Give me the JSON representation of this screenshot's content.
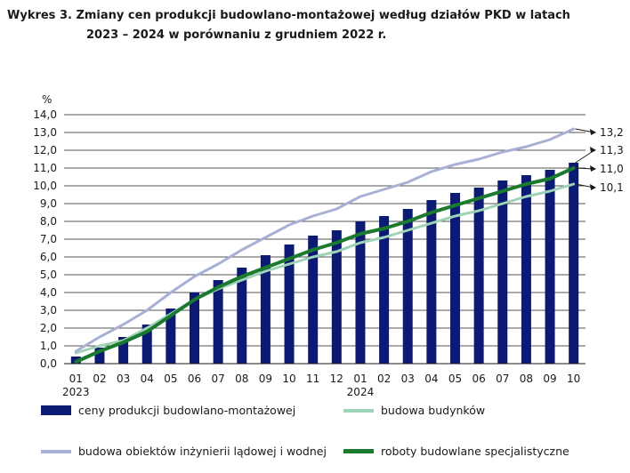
{
  "title_line1": "Wykres 3. Zmiany cen produkcji budowlano-montażowej według działów PKD w latach",
  "title_line2": "2023 – 2024 w porównaniu z grudniem 2022 r.",
  "colors": {
    "bars": "#0d1a73",
    "budowa_budynkow": "#9fd3b6",
    "inzynieria": "#a8b0d6",
    "roboty_specjalistyczne": "#1a7a2e",
    "grid": "#1a1a1a"
  },
  "chart_data": {
    "type": "bar",
    "ylabel": "%",
    "ylim": [
      0,
      14
    ],
    "yticks": [
      "0,0",
      "1,0",
      "2,0",
      "3,0",
      "4,0",
      "5,0",
      "6,0",
      "7,0",
      "8,0",
      "9,0",
      "10,0",
      "11,0",
      "12,0",
      "13,0",
      "14,0"
    ],
    "categories": [
      "01",
      "02",
      "03",
      "04",
      "05",
      "06",
      "07",
      "08",
      "09",
      "10",
      "11",
      "12",
      "01",
      "02",
      "03",
      "04",
      "05",
      "06",
      "07",
      "08",
      "09",
      "10"
    ],
    "year_labels": [
      {
        "index": 0,
        "text": "2023"
      },
      {
        "index": 12,
        "text": "2024"
      }
    ],
    "grid": "horizontal",
    "legend_position": "bottom",
    "series": [
      {
        "name": "ceny produkcji budowlano-montażowej",
        "kind": "bar",
        "values": [
          0.4,
          0.9,
          1.5,
          2.2,
          3.1,
          4.0,
          4.7,
          5.4,
          6.1,
          6.7,
          7.2,
          7.5,
          8.0,
          8.3,
          8.7,
          9.2,
          9.6,
          9.9,
          10.3,
          10.6,
          10.9,
          11.3
        ]
      },
      {
        "name": "budowa budynków",
        "kind": "line",
        "values": [
          0.6,
          1.0,
          1.3,
          2.0,
          2.8,
          3.6,
          4.2,
          4.7,
          5.2,
          5.6,
          6.0,
          6.3,
          6.8,
          7.1,
          7.5,
          7.9,
          8.3,
          8.6,
          9.0,
          9.4,
          9.7,
          10.1
        ]
      },
      {
        "name": "budowa obiektów inżynierii lądowej i wodnej",
        "kind": "line",
        "values": [
          0.7,
          1.5,
          2.2,
          3.0,
          4.0,
          4.9,
          5.6,
          6.4,
          7.1,
          7.8,
          8.3,
          8.7,
          9.4,
          9.8,
          10.2,
          10.8,
          11.2,
          11.5,
          11.9,
          12.2,
          12.6,
          13.2
        ]
      },
      {
        "name": "roboty budowlane specjalistyczne",
        "kind": "line",
        "values": [
          0.1,
          0.7,
          1.2,
          1.8,
          2.7,
          3.6,
          4.3,
          4.9,
          5.4,
          5.9,
          6.4,
          6.8,
          7.3,
          7.6,
          8.0,
          8.5,
          8.9,
          9.3,
          9.7,
          10.1,
          10.4,
          11.0
        ]
      }
    ],
    "end_labels": [
      "13,2",
      "11,3",
      "11,0",
      "10,1"
    ]
  },
  "legend": {
    "item1": "ceny produkcji budowlano-montażowej",
    "item2": "budowa budynków",
    "item3": "budowa obiektów inżynierii lądowej i wodnej",
    "item4": "roboty budowlane specjalistyczne"
  }
}
